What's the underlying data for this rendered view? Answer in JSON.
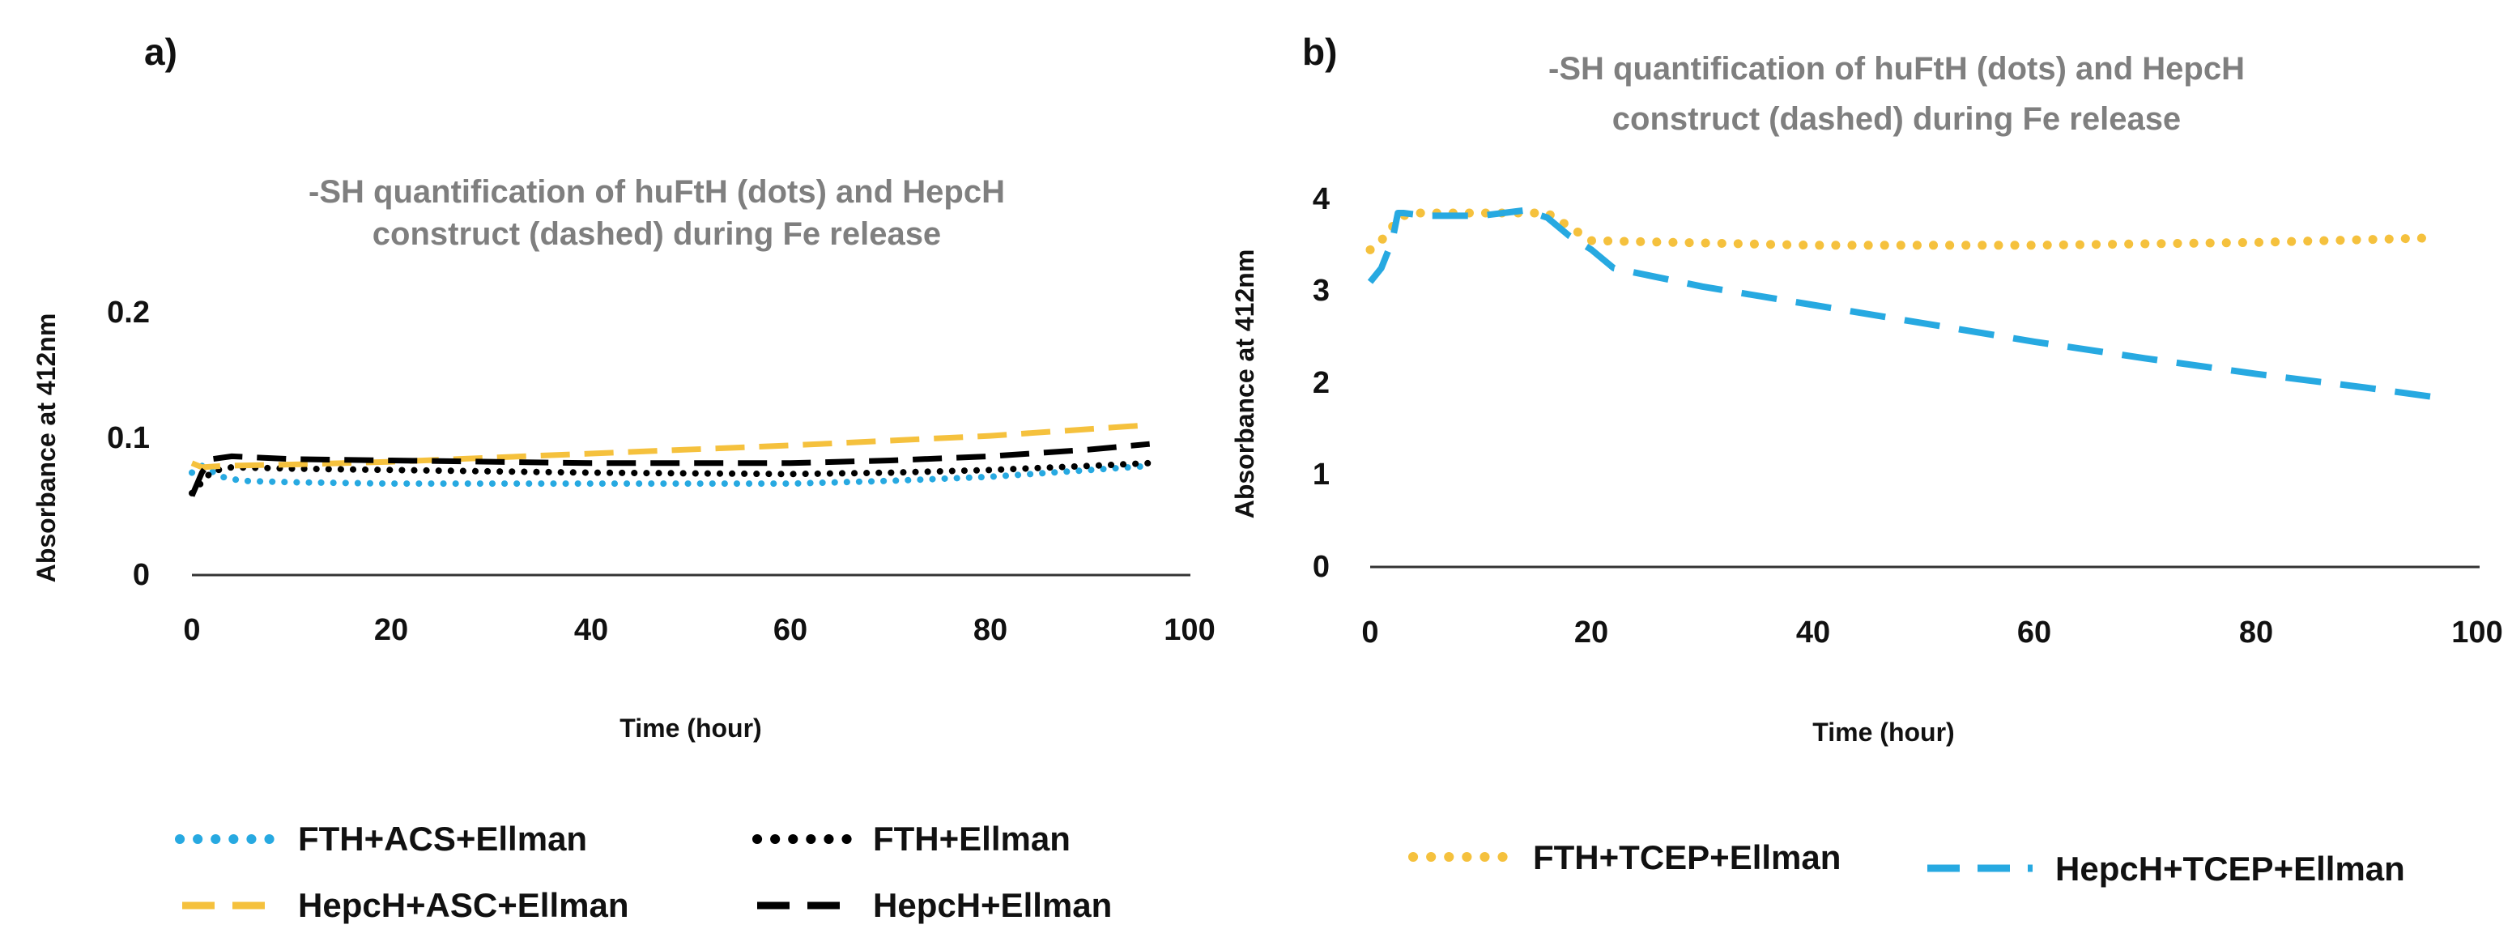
{
  "chart_data": [
    {
      "panel_label": "a)",
      "type": "line",
      "title_lines": [
        "-SH quantification of huFtH (dots) and HepcH",
        "construct (dashed) during Fe release"
      ],
      "xlabel": "Time (hour)",
      "ylabel": "Absorbance at 412nm",
      "xlim": [
        0,
        100
      ],
      "ylim": [
        0,
        0.2
      ],
      "xticks": [
        0,
        20,
        40,
        60,
        80,
        100
      ],
      "xtick_labels": [
        "0",
        "20",
        "40",
        "60",
        "80",
        "100"
      ],
      "yticks": [
        0,
        0.1,
        0.2
      ],
      "ytick_labels": [
        "0",
        "0.1",
        "0.2"
      ],
      "grid": false,
      "series": [
        {
          "name": "FTH+ACS+Ellman",
          "color": "#27a9e1",
          "style": "dots",
          "x": [
            0,
            1,
            3,
            5,
            10,
            20,
            40,
            60,
            70,
            80,
            90,
            96
          ],
          "y": [
            0.075,
            0.08,
            0.072,
            0.069,
            0.068,
            0.067,
            0.067,
            0.067,
            0.069,
            0.072,
            0.077,
            0.08
          ]
        },
        {
          "name": "FTH+Ellman",
          "color": "#000000",
          "style": "dots",
          "x": [
            0,
            1,
            2,
            4,
            10,
            20,
            40,
            60,
            70,
            80,
            90,
            96
          ],
          "y": [
            0.06,
            0.068,
            0.076,
            0.079,
            0.078,
            0.077,
            0.075,
            0.074,
            0.075,
            0.077,
            0.08,
            0.082
          ]
        },
        {
          "name": "HepcH+ASC+Ellman",
          "color": "#f5c13d",
          "style": "dashed",
          "x": [
            0,
            1,
            3,
            10,
            20,
            40,
            60,
            80,
            96
          ],
          "y": [
            0.082,
            0.079,
            0.08,
            0.081,
            0.083,
            0.089,
            0.095,
            0.102,
            0.11
          ]
        },
        {
          "name": "HepcH+Ellman",
          "color": "#000000",
          "style": "dashed",
          "x": [
            0,
            1,
            2,
            4,
            10,
            20,
            40,
            60,
            70,
            80,
            90,
            96
          ],
          "y": [
            0.058,
            0.075,
            0.085,
            0.087,
            0.085,
            0.084,
            0.082,
            0.082,
            0.084,
            0.087,
            0.092,
            0.096
          ]
        }
      ],
      "legend": {
        "placement": "bottom",
        "entries": [
          "FTH+ACS+Ellman",
          "FTH+Ellman",
          "HepcH+ASC+Ellman",
          "HepcH+Ellman"
        ]
      }
    },
    {
      "panel_label": "b)",
      "type": "line",
      "title_lines": [
        "-SH quantification of huFtH (dots) and HepcH",
        "construct (dashed) during Fe release"
      ],
      "xlabel": "Time (hour)",
      "ylabel": "Absorbance at 412nm",
      "xlim": [
        0,
        100
      ],
      "ylim": [
        0,
        4
      ],
      "xticks": [
        0,
        20,
        40,
        60,
        80,
        100
      ],
      "xtick_labels": [
        "0",
        "20",
        "40",
        "60",
        "80",
        "100"
      ],
      "yticks": [
        0,
        1,
        2,
        3,
        4
      ],
      "ytick_labels": [
        "0",
        "1",
        "2",
        "3",
        "4"
      ],
      "grid": false,
      "series": [
        {
          "name": "FTH+TCEP+Ellman",
          "color": "#f5c13d",
          "style": "dots",
          "x": [
            0,
            1,
            2,
            3,
            4,
            10,
            16,
            20,
            40,
            60,
            80,
            96
          ],
          "y": [
            3.45,
            3.55,
            3.7,
            3.82,
            3.85,
            3.85,
            3.85,
            3.55,
            3.5,
            3.5,
            3.53,
            3.58
          ]
        },
        {
          "name": "HepcH+TCEP+Ellman",
          "color": "#27a9e1",
          "style": "dashed",
          "x": [
            0,
            1,
            2,
            2.5,
            3,
            5,
            10,
            14,
            16,
            18,
            20,
            22,
            30,
            40,
            50,
            60,
            70,
            80,
            90,
            96
          ],
          "y": [
            3.1,
            3.25,
            3.55,
            3.85,
            3.85,
            3.82,
            3.82,
            3.88,
            3.8,
            3.6,
            3.45,
            3.25,
            3.05,
            2.85,
            2.65,
            2.45,
            2.27,
            2.1,
            1.95,
            1.85
          ]
        }
      ],
      "legend": {
        "placement": "bottom",
        "entries": [
          "FTH+TCEP+Ellman",
          "HepcH+TCEP+Ellman"
        ]
      }
    }
  ]
}
